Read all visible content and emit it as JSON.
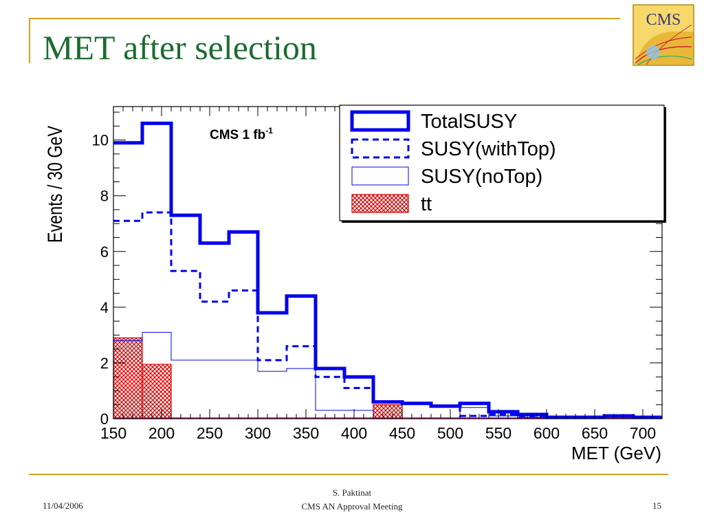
{
  "slide": {
    "title": "MET after selection",
    "logo_text": "CMS",
    "footer": {
      "date": "11/04/2006",
      "author": "S. Paktinat",
      "meeting": "CMS AN Approval Meeting",
      "page": "15"
    }
  },
  "chart_data": {
    "type": "histogram",
    "xlabel": "MET (GeV)",
    "ylabel": "Events / 30 GeV",
    "annotation": "CMS 1 fb",
    "annotation_sup": "-1",
    "xlim": [
      150,
      720
    ],
    "ylim": [
      0,
      11.2
    ],
    "x_ticks": [
      150,
      200,
      250,
      300,
      350,
      400,
      450,
      500,
      550,
      600,
      650,
      700
    ],
    "y_ticks": [
      0,
      2,
      4,
      6,
      8,
      10
    ],
    "legend_position": "top-right",
    "series": [
      {
        "name": "TotalSUSY",
        "style": "thick-solid",
        "color": "#0000ee",
        "bin_edges": [
          150,
          180,
          210,
          240,
          270,
          300,
          330,
          360,
          390,
          420,
          450,
          480,
          510,
          540,
          570,
          600,
          630,
          660,
          690,
          720
        ],
        "values": [
          9.9,
          10.6,
          7.3,
          6.3,
          6.7,
          3.8,
          4.4,
          1.8,
          1.5,
          0.6,
          0.55,
          0.45,
          0.55,
          0.25,
          0.15,
          0.05,
          0.05,
          0.1,
          0.05
        ]
      },
      {
        "name": "SUSY(withTop)",
        "style": "dashed",
        "color": "#0000ee",
        "bin_edges": [
          150,
          180,
          210,
          240,
          270,
          300,
          330,
          360,
          390,
          420,
          450,
          480,
          510,
          540,
          570,
          600,
          630,
          660,
          690,
          720
        ],
        "values": [
          7.1,
          7.4,
          5.3,
          4.2,
          4.6,
          2.1,
          2.6,
          1.5,
          1.1,
          0.6,
          0.55,
          0.45,
          0.1,
          0.15,
          0.1,
          0.05,
          0.05,
          0.1,
          0.05
        ]
      },
      {
        "name": "SUSY(noTop)",
        "style": "thin-solid",
        "color": "#0000ee",
        "bin_edges": [
          150,
          180,
          210,
          240,
          270,
          300,
          330,
          360,
          390,
          420,
          450,
          480,
          510,
          540,
          570,
          600,
          630,
          660,
          690,
          720
        ],
        "values": [
          2.8,
          3.1,
          2.1,
          2.1,
          2.1,
          1.7,
          1.8,
          0.3,
          0.3,
          0.0,
          0.0,
          0.0,
          0.4,
          0.1,
          0.05,
          0.0,
          0.0,
          0.0,
          0.0
        ]
      },
      {
        "name": "tt",
        "style": "hatched-fill",
        "color": "#dd0000",
        "bin_edges": [
          150,
          180,
          210,
          240,
          270,
          300,
          330,
          360,
          390,
          420,
          450,
          480,
          510,
          540,
          570,
          600,
          630,
          660,
          690,
          720
        ],
        "values": [
          2.9,
          1.95,
          0,
          0,
          0,
          0,
          0,
          0,
          0,
          0.5,
          0,
          0,
          0,
          0,
          0,
          0,
          0,
          0,
          0
        ]
      }
    ]
  }
}
